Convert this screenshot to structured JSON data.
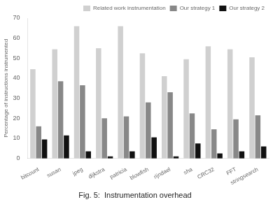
{
  "chart_data": {
    "type": "bar",
    "title": "Fig. 5:  Instrumentation overhead",
    "ylabel": "Percentage of instructions instrumented",
    "categories": [
      "bitcount",
      "susan",
      "jpeg",
      "dijkstra",
      "patricia",
      "blowfish",
      "rijndael",
      "sha",
      "CRC32",
      "FFT",
      "stringsearch"
    ],
    "series": [
      {
        "name": "Related work instrumentation",
        "color": "#d0d0d0",
        "values": [
          44.5,
          54.5,
          66.0,
          55.0,
          66.0,
          52.5,
          41.0,
          49.5,
          56.0,
          54.5,
          50.5
        ]
      },
      {
        "name": "Our strategy 1",
        "color": "#888888",
        "values": [
          16.0,
          38.5,
          36.5,
          20.0,
          21.0,
          28.0,
          33.0,
          22.5,
          14.5,
          19.5,
          21.5
        ]
      },
      {
        "name": "Our strategy 2",
        "color": "#111111",
        "values": [
          9.5,
          11.5,
          3.5,
          1.0,
          3.5,
          10.5,
          1.0,
          7.5,
          2.5,
          3.5,
          6.0
        ]
      }
    ],
    "ylim": [
      0,
      70
    ],
    "yticks": [
      0,
      10,
      20,
      30,
      40,
      50,
      60,
      70
    ],
    "legend": "upper right",
    "grid": false
  }
}
